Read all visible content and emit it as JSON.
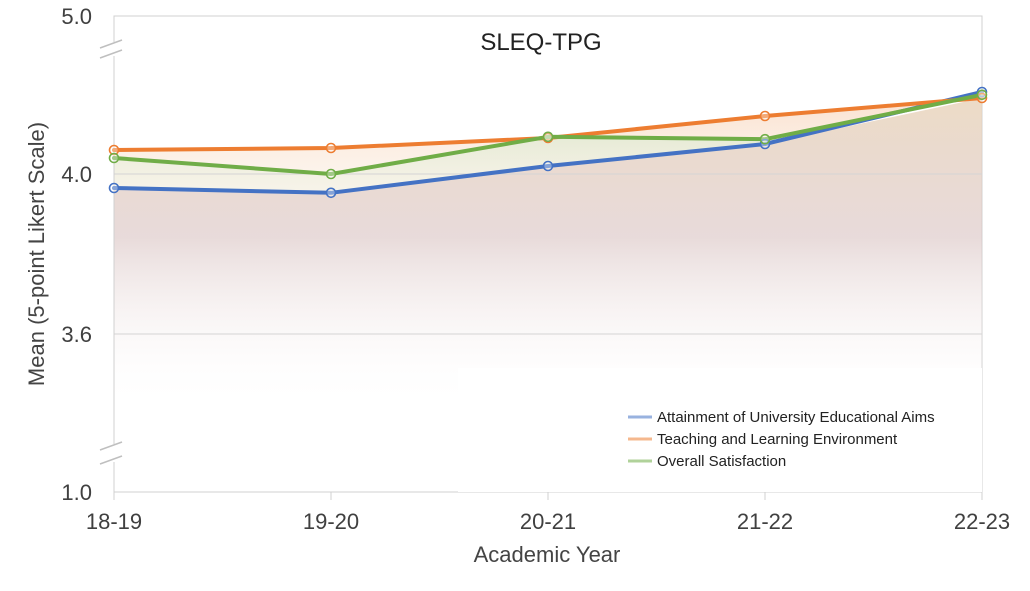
{
  "chart_data": {
    "type": "line",
    "title": "SLEQ-TPG",
    "xlabel": "Academic Year",
    "ylabel": "Mean (5-point Likert Scale)",
    "categories": [
      "18-19",
      "19-20",
      "20-21",
      "21-22",
      "22-23"
    ],
    "y_axis": {
      "tick_labels": [
        "1.0",
        "3.6",
        "4.0",
        "5.0"
      ],
      "displayed_range": [
        3.6,
        4.4
      ],
      "broken": true,
      "gridlines": [
        3.6,
        4.0
      ]
    },
    "series": [
      {
        "name": "Attainment of University Educational Aims",
        "color": "#4472c4",
        "values": [
          3.965,
          3.953,
          4.02,
          4.075,
          4.205
        ]
      },
      {
        "name": "Teaching and Learning Environment",
        "color": "#ed7d31",
        "values": [
          4.06,
          4.065,
          4.09,
          4.145,
          4.19
        ]
      },
      {
        "name": "Overall Satisfaction",
        "color": "#70ad47",
        "values": [
          4.04,
          4.0,
          4.093,
          4.087,
          4.198
        ]
      }
    ],
    "legend_position": "bottom-right",
    "grid": true
  }
}
